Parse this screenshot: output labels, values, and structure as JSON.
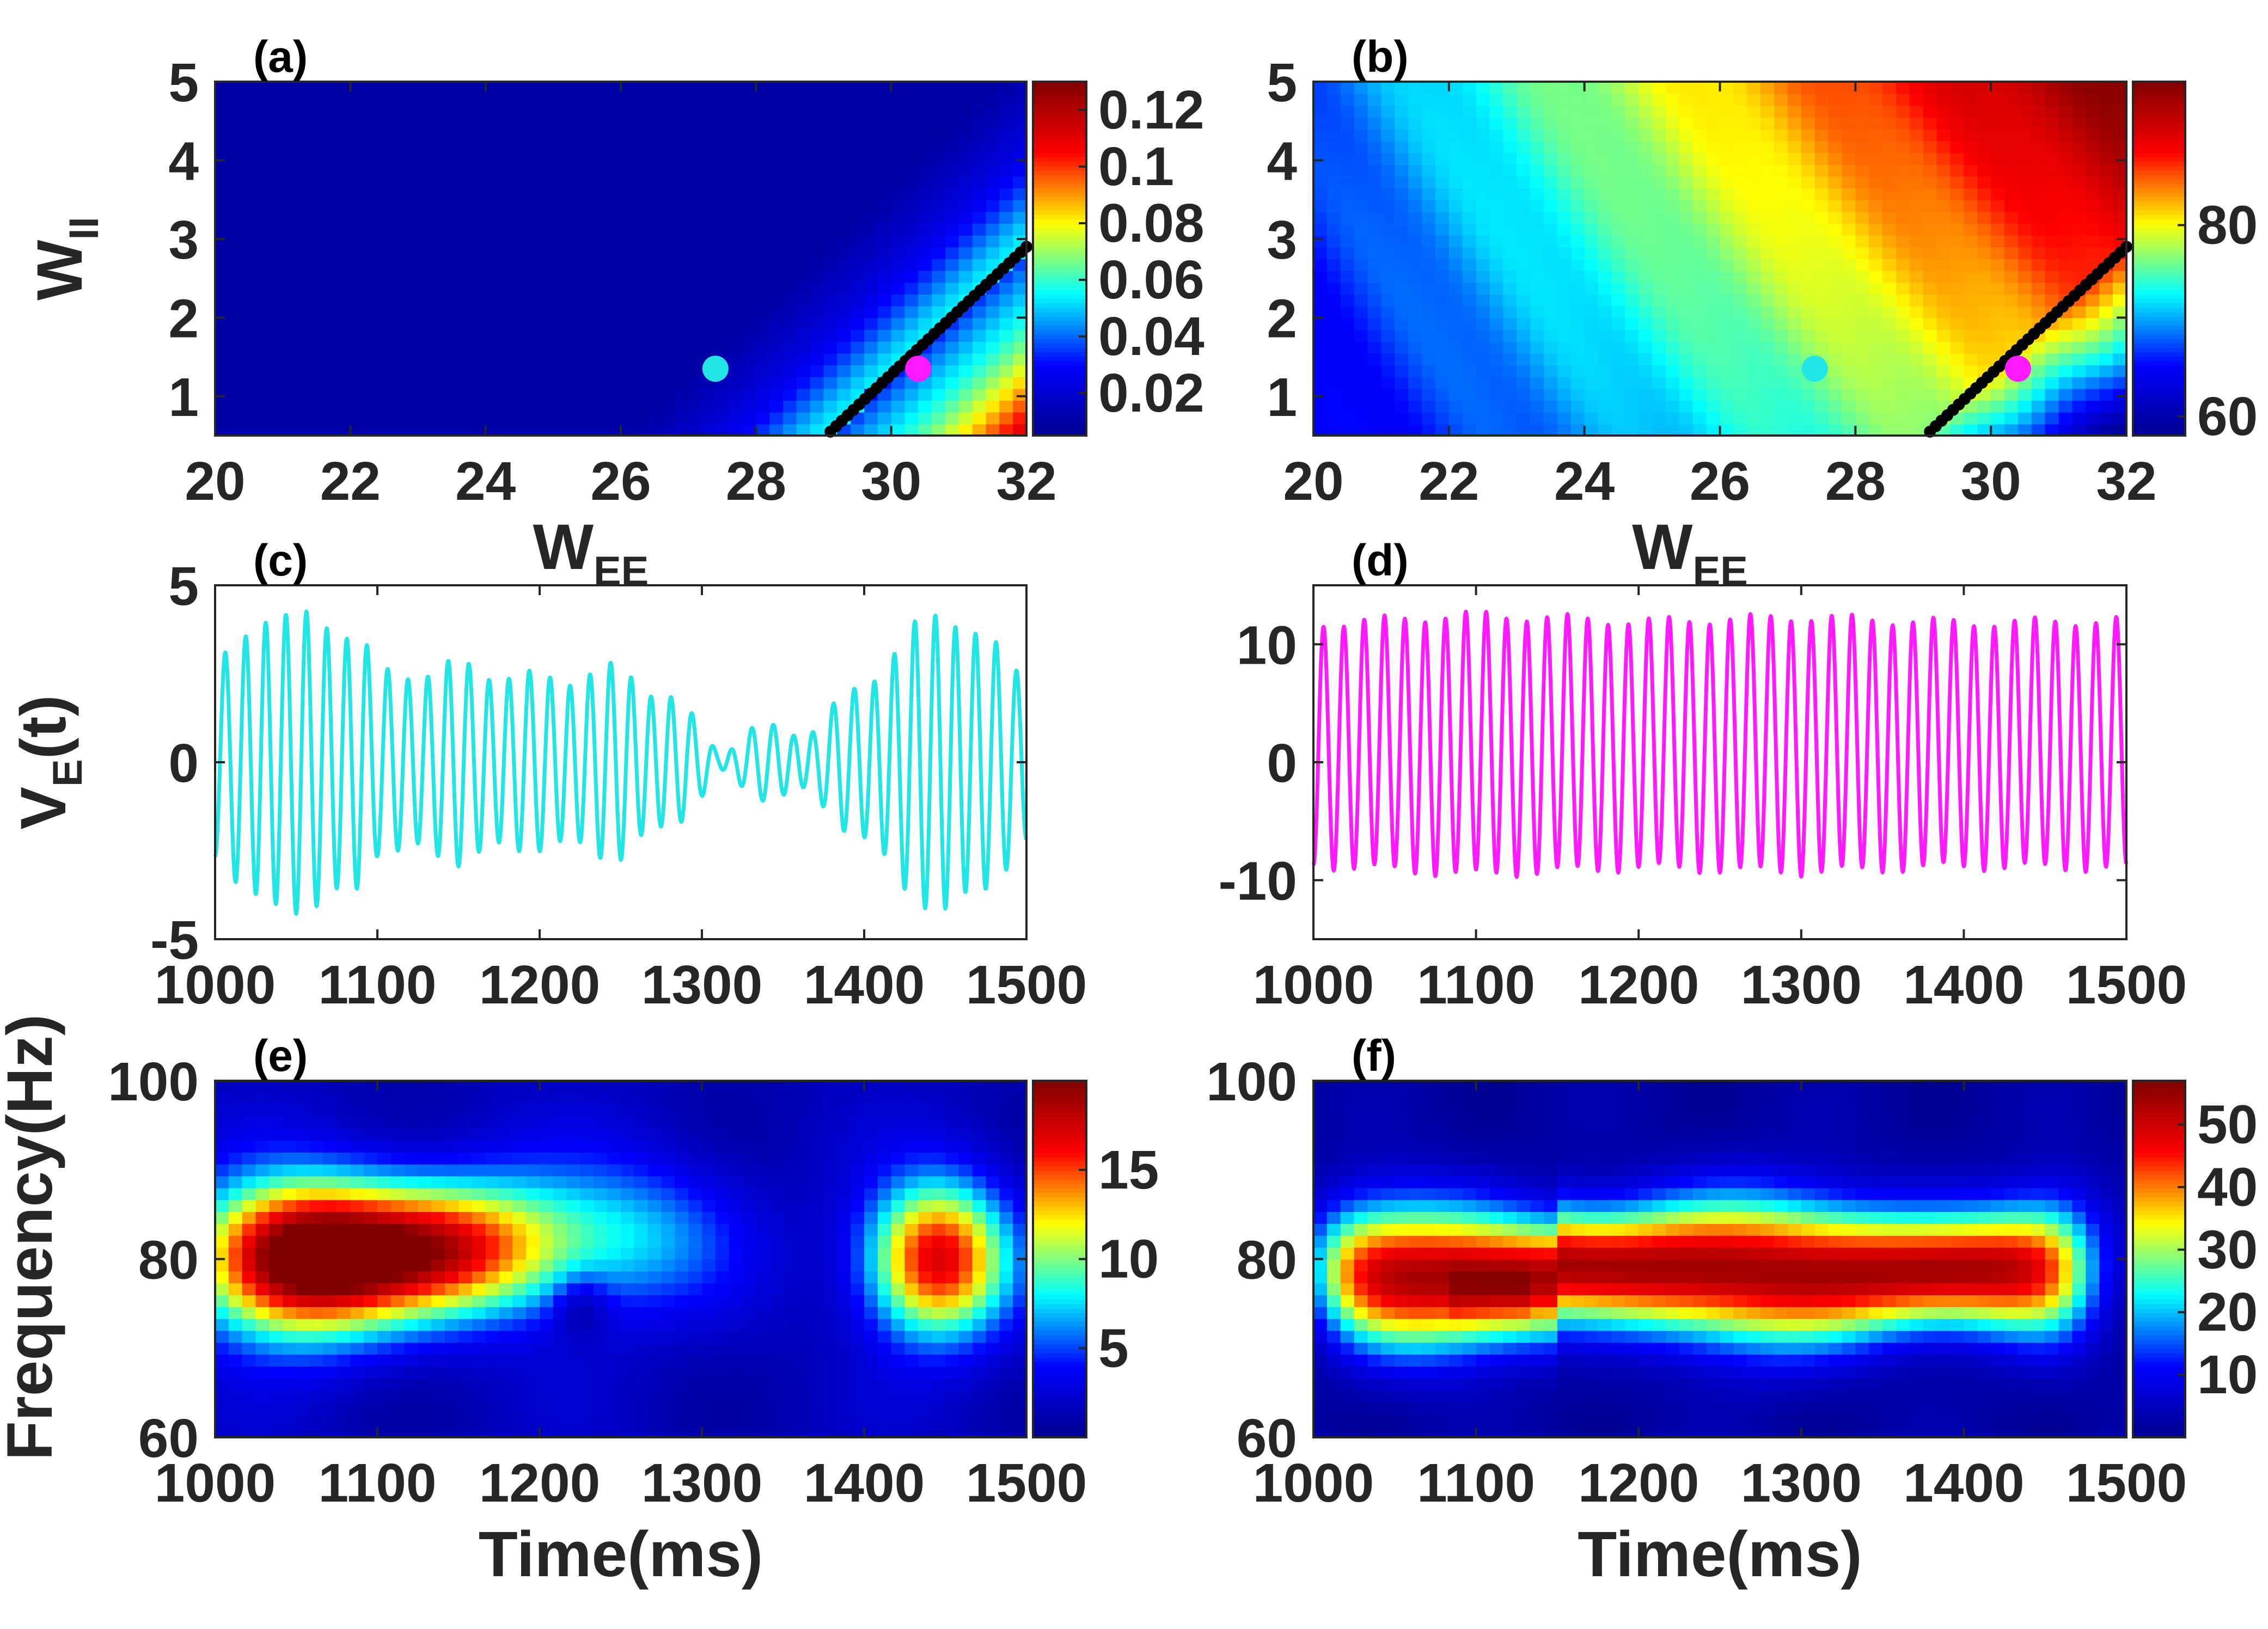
{
  "colormap": [
    "#00008f",
    "#0000ff",
    "#00ffff",
    "#ffff00",
    "#ff0000",
    "#800000"
  ],
  "colors": {
    "trace_c": "#22e6e6",
    "trace_d": "#ff1aff",
    "marker_cyan": "#22e6e6",
    "marker_magenta": "#ff1aff",
    "boundary": "#000000",
    "axes": "#262626"
  },
  "chart_data": [
    {
      "id": "a",
      "panel_label": "(a)",
      "type": "heatmap",
      "xlabel_main": "W",
      "xlabel_sub": "EE",
      "ylabel_main": "W",
      "ylabel_sub": "II",
      "xlim": [
        20,
        32
      ],
      "ylim": [
        0.5,
        5
      ],
      "xticks": [
        "20",
        "22",
        "24",
        "26",
        "28",
        "30",
        "32"
      ],
      "yticks": [
        "1",
        "2",
        "3",
        "4",
        "5"
      ],
      "clim": [
        0.005,
        0.13
      ],
      "cbar_ticks": [
        "0.02",
        "0.04",
        "0.06",
        "0.08",
        "0.1",
        "0.12"
      ],
      "boundary_line": {
        "x": [
          29.1,
          32
        ],
        "y": [
          0.55,
          2.9
        ]
      },
      "markers": [
        {
          "x": 27.4,
          "y": 1.35,
          "color": "cyan"
        },
        {
          "x": 30.4,
          "y": 1.35,
          "color": "magenta"
        }
      ]
    },
    {
      "id": "b",
      "panel_label": "(b)",
      "type": "heatmap",
      "xlabel_main": "W",
      "xlabel_sub": "EE",
      "xlim": [
        20,
        32
      ],
      "ylim": [
        0.5,
        5
      ],
      "xticks": [
        "20",
        "22",
        "24",
        "26",
        "28",
        "30",
        "32"
      ],
      "yticks": [
        "1",
        "2",
        "3",
        "4",
        "5"
      ],
      "clim": [
        58,
        95
      ],
      "cbar_ticks": [
        "60",
        "80"
      ],
      "boundary_line": {
        "x": [
          29.1,
          32
        ],
        "y": [
          0.55,
          2.9
        ]
      },
      "markers": [
        {
          "x": 27.4,
          "y": 1.35,
          "color": "cyan"
        },
        {
          "x": 30.4,
          "y": 1.35,
          "color": "magenta"
        }
      ]
    },
    {
      "id": "c",
      "panel_label": "(c)",
      "type": "line",
      "ylabel_main": "V",
      "ylabel_sub": "E",
      "ylabel_tail": "(t)",
      "xlim": [
        1000,
        1500
      ],
      "ylim": [
        -5,
        5
      ],
      "xticks": [
        "1000",
        "1100",
        "1200",
        "1300",
        "1400",
        "1500"
      ],
      "yticks": [
        "-5",
        "0",
        "5"
      ],
      "series": [
        {
          "name": "V_E(t)",
          "frequency_hz": 80,
          "offset": 0,
          "amplitude_envelope": {
            "t": [
              1000,
              1030,
              1060,
              1090,
              1100,
              1150,
              1200,
              1250,
              1280,
              1310,
              1330,
              1370,
              1400,
              1430,
              1450,
              1480,
              1500
            ],
            "a": [
              2.5,
              4.2,
              4.0,
              3.6,
              2.4,
              2.7,
              2.3,
              2.6,
              1.8,
              0.4,
              0.8,
              1.0,
              2.2,
              3.7,
              4.3,
              3.2,
              2.4
            ]
          }
        }
      ]
    },
    {
      "id": "d",
      "panel_label": "(d)",
      "type": "line",
      "xlim": [
        1000,
        1500
      ],
      "ylim": [
        -15,
        15
      ],
      "xticks": [
        "1000",
        "1100",
        "1200",
        "1300",
        "1400",
        "1500"
      ],
      "yticks": [
        "-10",
        "0",
        "10"
      ],
      "series": [
        {
          "name": "V_E(t)",
          "frequency_hz": 80,
          "offset": 1.5,
          "amplitude_envelope": {
            "t": [
              1000,
              1100,
              1200,
              1300,
              1400,
              1500
            ],
            "a": [
              10.2,
              11.0,
              10.4,
              10.8,
              10.3,
              10.5
            ]
          }
        }
      ]
    },
    {
      "id": "e",
      "panel_label": "(e)",
      "type": "heatmap",
      "xlabel": "Time(ms)",
      "ylabel": "Frequency(Hz)",
      "xlim": [
        1000,
        1500
      ],
      "ylim": [
        60,
        100
      ],
      "xticks": [
        "1000",
        "1100",
        "1200",
        "1300",
        "1400",
        "1500"
      ],
      "yticks": [
        "60",
        "80",
        "100"
      ],
      "clim": [
        0,
        20
      ],
      "cbar_ticks": [
        "5",
        "10",
        "15"
      ],
      "blobs": [
        {
          "t": 1050,
          "f": 80,
          "peak": 19,
          "wt": 45,
          "wf": 6
        },
        {
          "t": 1130,
          "f": 81,
          "peak": 11,
          "wt": 50,
          "wf": 5
        },
        {
          "t": 1190,
          "f": 82,
          "peak": 6,
          "wt": 60,
          "wf": 6
        },
        {
          "t": 1445,
          "f": 80,
          "peak": 16,
          "wt": 30,
          "wf": 6
        },
        {
          "t": 1270,
          "f": 83,
          "peak": 3,
          "wt": 40,
          "wf": 6
        },
        {
          "t": 1225,
          "f": 75,
          "peak": -3,
          "wt": 12,
          "wf": 2.5
        }
      ]
    },
    {
      "id": "f",
      "panel_label": "(f)",
      "type": "heatmap",
      "xlabel": "Time(ms)",
      "xlim": [
        1000,
        1500
      ],
      "ylim": [
        60,
        100
      ],
      "xticks": [
        "1000",
        "1100",
        "1200",
        "1300",
        "1400",
        "1500"
      ],
      "yticks": [
        "60",
        "80",
        "100"
      ],
      "clim": [
        0,
        57
      ],
      "cbar_ticks": [
        "10",
        "20",
        "30",
        "40",
        "50"
      ],
      "band": {
        "t_start": 1010,
        "t_end": 1470,
        "center_f": 79,
        "peak": 52,
        "wf": 5
      }
    }
  ]
}
